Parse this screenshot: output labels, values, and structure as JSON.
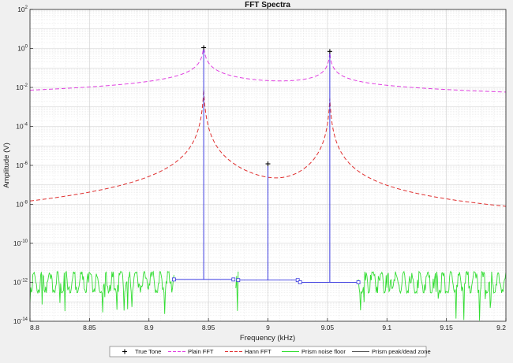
{
  "chart_data": {
    "type": "line",
    "title": "FFT Spectra",
    "xlabel": "Frequency (kHz)",
    "ylabel": "Amplitude (V)",
    "xlim": [
      8.8,
      9.2
    ],
    "ylim_log10": [
      -14,
      2
    ],
    "y_scale": "log",
    "grid": true,
    "minor_grid": true,
    "legend_placement": "bottom-outside",
    "x_ticks": [
      8.8,
      8.85,
      8.9,
      8.95,
      9.0,
      9.05,
      9.1,
      9.15,
      9.2
    ],
    "x_tick_labels": [
      "8.8",
      "8.85",
      "8.9",
      "8.95",
      "9",
      "9.05",
      "9.1",
      "9.15",
      "9.2"
    ],
    "y_tick_exponents": [
      2,
      0,
      -2,
      -4,
      -6,
      -8,
      -10,
      -12,
      -14
    ],
    "series": [
      {
        "name": "True Tone",
        "style": "marker",
        "color": "#000000",
        "points": [
          [
            8.946,
            1.1
          ],
          [
            9.0,
            1.2e-06
          ],
          [
            9.052,
            0.7
          ]
        ]
      },
      {
        "name": "Plain FFT",
        "style": "dashed",
        "color": "#e040e0",
        "peaks": [
          [
            8.946,
            1.0
          ],
          [
            9.052,
            0.65
          ]
        ],
        "floor_left": 0.0025,
        "floor_right": 0.0015,
        "min_between": [
          9.01,
          0.009
        ]
      },
      {
        "name": "Hann FFT",
        "style": "dashed",
        "color": "#e03030",
        "peaks": [
          [
            8.946,
            0.55
          ],
          [
            9.052,
            0.35
          ]
        ],
        "left_edge": 1.2e-07,
        "right_edge": 3e-08,
        "min_between": [
          9.01,
          1.8e-06
        ]
      },
      {
        "name": "Prism noise floor",
        "style": "solid",
        "color": "#33dd33",
        "level": 1e-12,
        "gap": [
          8.921,
          8.973
        ],
        "gap2": [
          9.027,
          9.076
        ]
      },
      {
        "name": "Prism peak/dead zone",
        "style": "solid",
        "color": "#3a3ae0",
        "stems": [
          [
            8.946,
            0.9
          ],
          [
            9.0,
            1.1e-06
          ],
          [
            9.052,
            0.6
          ]
        ],
        "zones": [
          {
            "x0": 8.921,
            "x1": 8.971,
            "y": 1.4e-12
          },
          {
            "x0": 8.975,
            "x1": 9.025,
            "y": 1.3e-12
          },
          {
            "x0": 9.027,
            "x1": 9.076,
            "y": 1e-12
          }
        ]
      }
    ]
  }
}
